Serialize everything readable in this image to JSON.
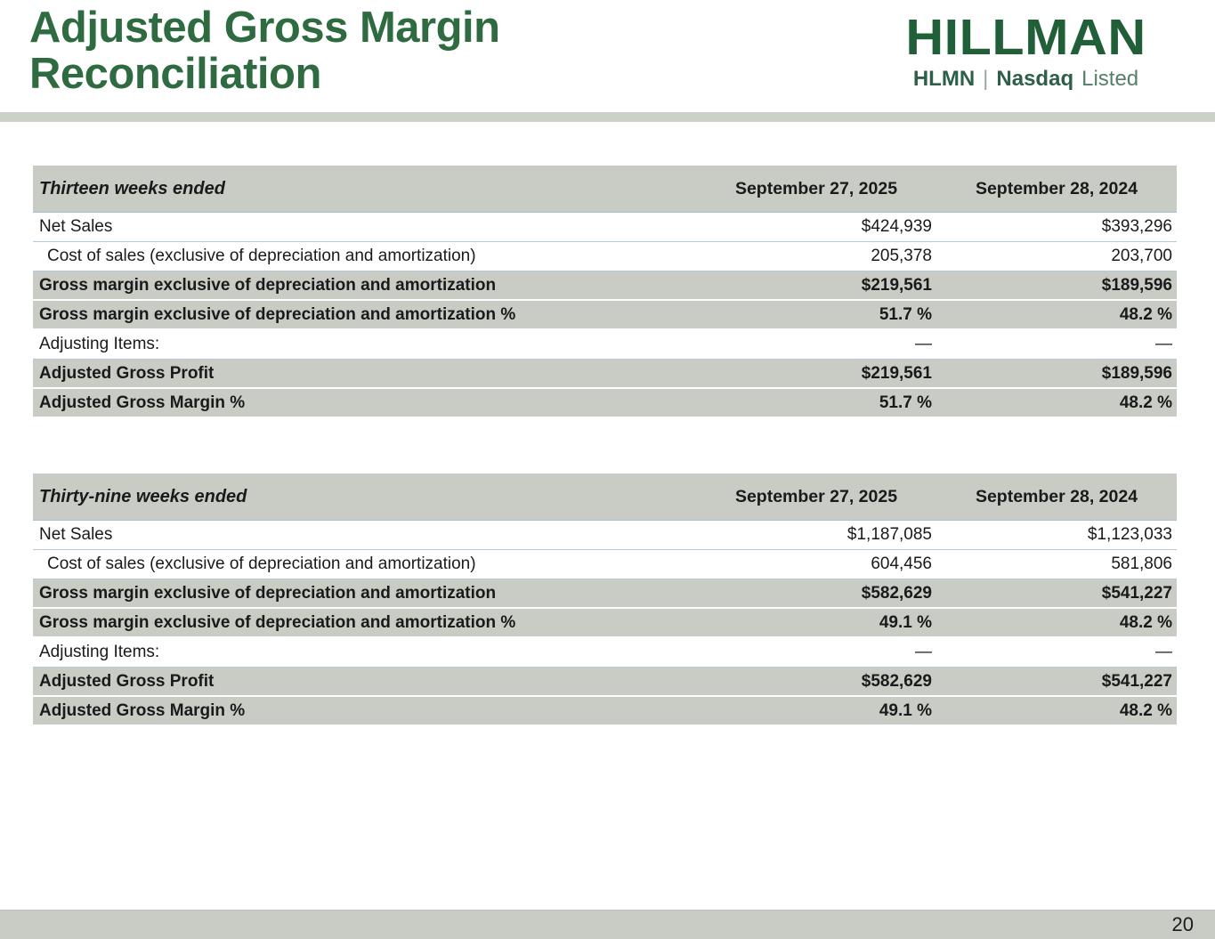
{
  "header": {
    "title_line1": "Adjusted Gross Margin",
    "title_line2": "Reconciliation",
    "logo": {
      "wordmark": "HILLMAN",
      "ticker": "HLMN",
      "separator": "|",
      "exchange_bold": "Nasdaq",
      "exchange_regular": "Listed"
    }
  },
  "colors": {
    "brand_green": "#2e6b40",
    "logo_green": "#215f38",
    "table_gray": "#c8ccc5",
    "separator_blue": "#b6c9d7"
  },
  "tables": [
    {
      "period_label": "Thirteen weeks ended",
      "columns": [
        "September 27, 2025",
        "September 28, 2024"
      ],
      "rows": [
        {
          "label": "Net Sales",
          "v1": "$424,939",
          "v2": "$393,296"
        },
        {
          "label": "Cost of sales (exclusive of depreciation and amortization)",
          "v1": "205,378",
          "v2": "203,700"
        },
        {
          "label": "Gross margin exclusive of depreciation and amortization",
          "v1": "$219,561",
          "v2": "$189,596"
        },
        {
          "label": "Gross margin exclusive of depreciation and amortization %",
          "v1": "51.7 %",
          "v2": "48.2 %"
        },
        {
          "label": "Adjusting Items:",
          "v1": "—",
          "v2": "—"
        },
        {
          "label": "Adjusted Gross Profit",
          "v1": "$219,561",
          "v2": "$189,596"
        },
        {
          "label": "Adjusted Gross Margin %",
          "v1": "51.7 %",
          "v2": "48.2 %"
        }
      ]
    },
    {
      "period_label": "Thirty-nine weeks ended",
      "columns": [
        "September 27, 2025",
        "September 28, 2024"
      ],
      "rows": [
        {
          "label": "Net Sales",
          "v1": "$1,187,085",
          "v2": "$1,123,033"
        },
        {
          "label": "Cost of sales (exclusive of depreciation and amortization)",
          "v1": "604,456",
          "v2": "581,806"
        },
        {
          "label": "Gross margin exclusive of depreciation and amortization",
          "v1": "$582,629",
          "v2": "$541,227"
        },
        {
          "label": "Gross margin exclusive of depreciation and amortization %",
          "v1": "49.1 %",
          "v2": "48.2 %"
        },
        {
          "label": "Adjusting Items:",
          "v1": "—",
          "v2": "—"
        },
        {
          "label": "Adjusted Gross Profit",
          "v1": "$582,629",
          "v2": "$541,227"
        },
        {
          "label": "Adjusted Gross Margin %",
          "v1": "49.1 %",
          "v2": "48.2 %"
        }
      ]
    }
  ],
  "footer": {
    "page_number": "20"
  }
}
